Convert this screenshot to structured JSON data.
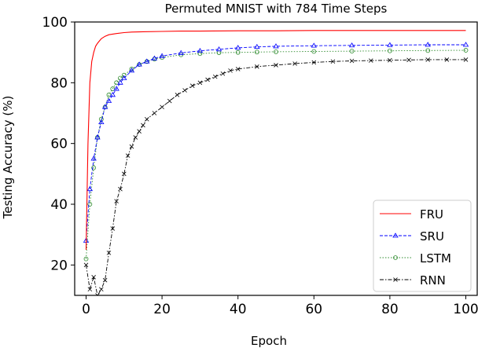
{
  "chart_data": {
    "type": "line",
    "title": "Permuted MNIST with 784 Time Steps",
    "xlabel": "Epoch",
    "ylabel": "Testing Accuracy (%)",
    "xlim": [
      -3,
      103
    ],
    "ylim": [
      10,
      100
    ],
    "xticks": [
      0,
      20,
      40,
      60,
      80,
      100
    ],
    "yticks": [
      20,
      40,
      60,
      80,
      100
    ],
    "grid": false,
    "legend_position": "lower-right",
    "series": [
      {
        "name": "FRU",
        "color": "#ff0000",
        "line": "solid",
        "marker": "none",
        "x": [
          0,
          0.5,
          1,
          1.5,
          2,
          2.5,
          3,
          4,
          5,
          6,
          8,
          10,
          12,
          15,
          20,
          25,
          30,
          40,
          50,
          60,
          70,
          80,
          90,
          100
        ],
        "y": [
          25,
          60,
          80,
          87,
          90,
          92,
          93,
          94.5,
          95.3,
          95.8,
          96.2,
          96.5,
          96.7,
          96.8,
          96.9,
          97.0,
          97.0,
          97.1,
          97.1,
          97.2,
          97.2,
          97.2,
          97.2,
          97.2
        ]
      },
      {
        "name": "SRU",
        "color": "#0000ff",
        "line": "dashed",
        "marker": "triangle",
        "x": [
          0,
          1,
          2,
          3,
          4,
          5,
          6,
          7,
          8,
          9,
          10,
          12,
          14,
          16,
          18,
          20,
          25,
          30,
          35,
          40,
          45,
          50,
          60,
          70,
          80,
          90,
          100
        ],
        "y": [
          28,
          45,
          55,
          62,
          67,
          72,
          74,
          76,
          78,
          80,
          81.5,
          84,
          86,
          87,
          88,
          88.8,
          89.8,
          90.5,
          91,
          91.5,
          91.8,
          92,
          92.2,
          92.3,
          92.4,
          92.5,
          92.5
        ]
      },
      {
        "name": "LSTM",
        "color": "#2e8b2e",
        "line": "dotted",
        "marker": "circle",
        "x": [
          0,
          1,
          2,
          3,
          4,
          5,
          6,
          7,
          8,
          9,
          10,
          12,
          14,
          16,
          18,
          20,
          25,
          30,
          35,
          40,
          45,
          50,
          60,
          70,
          80,
          90,
          100
        ],
        "y": [
          22,
          40,
          52,
          62,
          68,
          72,
          76,
          78,
          80,
          81.5,
          82.5,
          84.5,
          86,
          87,
          87.8,
          88.3,
          89.2,
          89.6,
          89.9,
          90,
          90.1,
          90.2,
          90.3,
          90.4,
          90.5,
          90.6,
          90.7
        ]
      },
      {
        "name": "RNN",
        "color": "#000000",
        "line": "dashdot",
        "marker": "x",
        "x": [
          0,
          1,
          2,
          3,
          4,
          5,
          6,
          7,
          8,
          9,
          10,
          11,
          12,
          13,
          14,
          15,
          16,
          18,
          20,
          22,
          24,
          26,
          28,
          30,
          32,
          34,
          36,
          38,
          40,
          45,
          50,
          55,
          60,
          65,
          70,
          75,
          80,
          85,
          90,
          95,
          100
        ],
        "y": [
          20,
          12,
          16,
          10,
          12,
          15,
          24,
          32,
          41,
          45,
          50,
          56,
          59,
          62,
          64,
          66,
          68,
          70,
          72,
          74,
          76,
          77.5,
          79,
          80,
          81,
          82,
          83,
          84,
          84.5,
          85.3,
          85.8,
          86.3,
          86.7,
          87,
          87.2,
          87.3,
          87.4,
          87.5,
          87.6,
          87.6,
          87.6
        ]
      }
    ]
  }
}
